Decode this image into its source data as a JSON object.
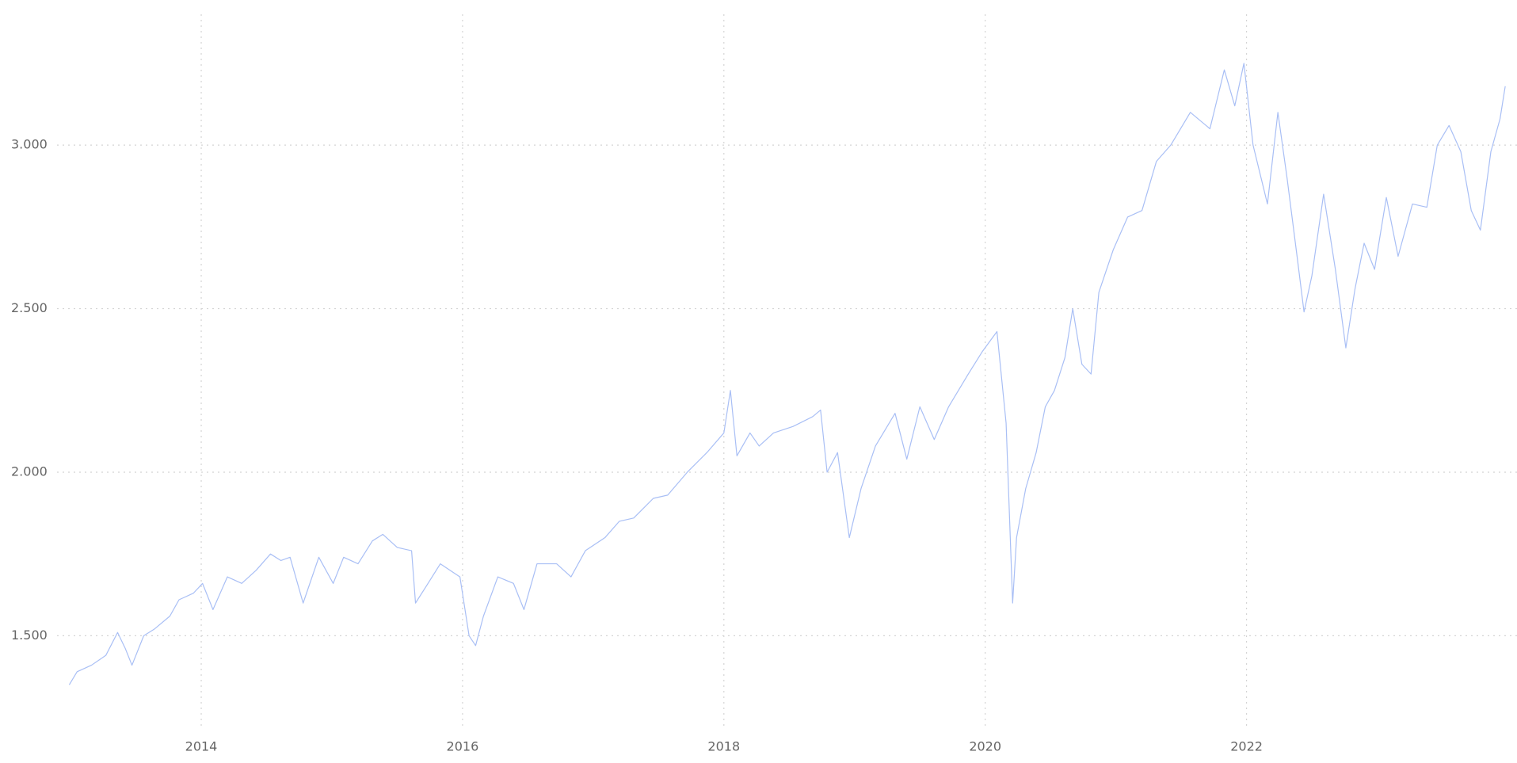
{
  "chart_data": {
    "type": "line",
    "x": [
      2012.99,
      2013.05,
      2013.16,
      2013.27,
      2013.36,
      2013.42,
      2013.47,
      2013.56,
      2013.64,
      2013.76,
      2013.83,
      2013.94,
      2014.01,
      2014.09,
      2014.2,
      2014.31,
      2014.42,
      2014.53,
      2014.61,
      2014.68,
      2014.78,
      2014.9,
      2015.01,
      2015.09,
      2015.2,
      2015.31,
      2015.39,
      2015.5,
      2015.61,
      2015.64,
      2015.72,
      2015.83,
      2015.98,
      2016.05,
      2016.1,
      2016.16,
      2016.27,
      2016.39,
      2016.47,
      2016.57,
      2016.72,
      2016.83,
      2016.94,
      2017.09,
      2017.2,
      2017.31,
      2017.46,
      2017.57,
      2017.72,
      2017.87,
      2018.0,
      2018.05,
      2018.1,
      2018.2,
      2018.27,
      2018.38,
      2018.53,
      2018.68,
      2018.74,
      2018.79,
      2018.87,
      2018.96,
      2019.05,
      2019.16,
      2019.31,
      2019.4,
      2019.5,
      2019.61,
      2019.72,
      2019.87,
      2019.98,
      2020.09,
      2020.16,
      2020.21,
      2020.24,
      2020.31,
      2020.39,
      2020.46,
      2020.53,
      2020.61,
      2020.67,
      2020.74,
      2020.81,
      2020.87,
      2020.98,
      2021.09,
      2021.2,
      2021.31,
      2021.42,
      2021.57,
      2021.72,
      2021.83,
      2021.91,
      2021.98,
      2022.05,
      2022.16,
      2022.24,
      2022.31,
      2022.39,
      2022.44,
      2022.5,
      2022.59,
      2022.68,
      2022.76,
      2022.83,
      2022.9,
      2022.98,
      2023.07,
      2023.16,
      2023.27,
      2023.38,
      2023.46,
      2023.55,
      2023.64,
      2023.72,
      2023.79,
      2023.87,
      2023.94,
      2023.98
    ],
    "series": [
      {
        "color": "#a9bff5",
        "values": [
          1350,
          1390,
          1410,
          1440,
          1510,
          1460,
          1410,
          1500,
          1520,
          1560,
          1610,
          1630,
          1660,
          1580,
          1680,
          1660,
          1700,
          1750,
          1730,
          1740,
          1600,
          1740,
          1660,
          1740,
          1720,
          1790,
          1810,
          1770,
          1760,
          1600,
          1650,
          1720,
          1680,
          1500,
          1470,
          1560,
          1680,
          1660,
          1580,
          1720,
          1720,
          1680,
          1760,
          1800,
          1850,
          1860,
          1920,
          1930,
          2000,
          2060,
          2120,
          2250,
          2050,
          2120,
          2080,
          2120,
          2140,
          2170,
          2190,
          2000,
          2060,
          1800,
          1950,
          2080,
          2180,
          2040,
          2200,
          2100,
          2200,
          2300,
          2370,
          2430,
          2150,
          1600,
          1800,
          1950,
          2060,
          2200,
          2250,
          2350,
          2500,
          2330,
          2300,
          2550,
          2680,
          2780,
          2800,
          2950,
          3000,
          3100,
          3050,
          3230,
          3120,
          3250,
          3000,
          2820,
          3100,
          2900,
          2650,
          2490,
          2600,
          2850,
          2620,
          2380,
          2560,
          2700,
          2620,
          2840,
          2660,
          2820,
          2810,
          3000,
          3060,
          2980,
          2800,
          2740,
          2980,
          3080,
          3180
        ]
      }
    ],
    "xlim": [
      2012.46,
      2024.07
    ],
    "xticks": [
      2014,
      2016,
      2018,
      2020,
      2022
    ],
    "ylim": [
      1220,
      3400
    ],
    "yticks": [
      {
        "value": 1500,
        "label": "1.500"
      },
      {
        "value": 2000,
        "label": "2.000"
      },
      {
        "value": 2500,
        "label": "2.500"
      },
      {
        "value": 3000,
        "label": "3.000"
      }
    ],
    "grid": true
  }
}
